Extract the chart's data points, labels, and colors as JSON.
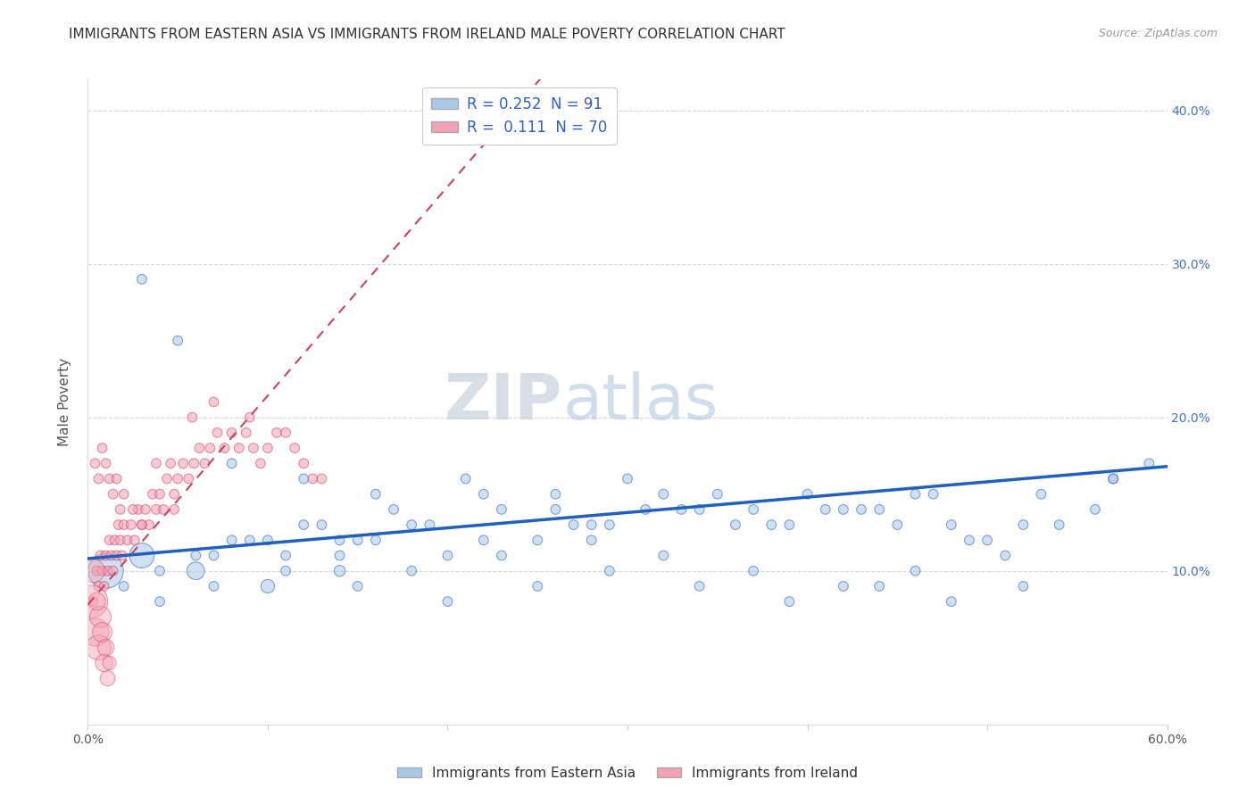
{
  "title": "IMMIGRANTS FROM EASTERN ASIA VS IMMIGRANTS FROM IRELAND MALE POVERTY CORRELATION CHART",
  "source": "Source: ZipAtlas.com",
  "ylabel": "Male Poverty",
  "xlim": [
    0.0,
    0.6
  ],
  "ylim": [
    0.0,
    0.42
  ],
  "legend_entry1": "R = 0.252  N = 91",
  "legend_entry2": "R =  0.111  N = 70",
  "legend_label1": "Immigrants from Eastern Asia",
  "legend_label2": "Immigrants from Ireland",
  "color_blue": "#a8c8e8",
  "color_pink": "#f4a0b5",
  "color_blue_line": "#2060c0",
  "color_pink_line": "#d04060",
  "background": "#ffffff",
  "ea_trend_x0": 0.0,
  "ea_trend_y0": 0.108,
  "ea_trend_x1": 0.6,
  "ea_trend_y1": 0.168,
  "ir_trend_x0": 0.0,
  "ir_trend_y0": 0.078,
  "ir_trend_x1": 0.13,
  "ir_trend_y1": 0.255,
  "eastern_asia_x": [
    0.17,
    0.22,
    0.26,
    0.32,
    0.37,
    0.4,
    0.43,
    0.48,
    0.53,
    0.57,
    0.12,
    0.15,
    0.19,
    0.23,
    0.28,
    0.33,
    0.38,
    0.42,
    0.46,
    0.5,
    0.08,
    0.11,
    0.14,
    0.18,
    0.22,
    0.27,
    0.31,
    0.36,
    0.41,
    0.45,
    0.49,
    0.54,
    0.06,
    0.09,
    0.13,
    0.16,
    0.2,
    0.25,
    0.29,
    0.34,
    0.39,
    0.44,
    0.47,
    0.52,
    0.56,
    0.04,
    0.07,
    0.1,
    0.14,
    0.18,
    0.23,
    0.28,
    0.32,
    0.37,
    0.42,
    0.46,
    0.51,
    0.03,
    0.05,
    0.08,
    0.12,
    0.16,
    0.21,
    0.26,
    0.3,
    0.35,
    0.02,
    0.04,
    0.07,
    0.11,
    0.15,
    0.2,
    0.25,
    0.29,
    0.34,
    0.39,
    0.44,
    0.48,
    0.52,
    0.57,
    0.59,
    0.01,
    0.03,
    0.06,
    0.1,
    0.14
  ],
  "eastern_asia_y": [
    0.14,
    0.15,
    0.14,
    0.15,
    0.14,
    0.15,
    0.14,
    0.13,
    0.15,
    0.16,
    0.13,
    0.12,
    0.13,
    0.14,
    0.13,
    0.14,
    0.13,
    0.14,
    0.15,
    0.12,
    0.12,
    0.11,
    0.12,
    0.13,
    0.12,
    0.13,
    0.14,
    0.13,
    0.14,
    0.13,
    0.12,
    0.13,
    0.11,
    0.12,
    0.13,
    0.12,
    0.11,
    0.12,
    0.13,
    0.14,
    0.13,
    0.14,
    0.15,
    0.13,
    0.14,
    0.1,
    0.11,
    0.12,
    0.11,
    0.1,
    0.11,
    0.12,
    0.11,
    0.1,
    0.09,
    0.1,
    0.11,
    0.29,
    0.25,
    0.17,
    0.16,
    0.15,
    0.16,
    0.15,
    0.16,
    0.15,
    0.09,
    0.08,
    0.09,
    0.1,
    0.09,
    0.08,
    0.09,
    0.1,
    0.09,
    0.08,
    0.09,
    0.08,
    0.09,
    0.16,
    0.17,
    0.1,
    0.11,
    0.1,
    0.09,
    0.1
  ],
  "eastern_asia_size": [
    60,
    60,
    60,
    60,
    60,
    60,
    60,
    60,
    60,
    60,
    60,
    60,
    60,
    60,
    60,
    60,
    60,
    60,
    60,
    60,
    60,
    60,
    60,
    60,
    60,
    60,
    60,
    60,
    60,
    60,
    60,
    60,
    60,
    60,
    60,
    60,
    60,
    60,
    60,
    60,
    60,
    60,
    60,
    60,
    60,
    60,
    60,
    60,
    60,
    60,
    60,
    60,
    60,
    60,
    60,
    60,
    60,
    60,
    60,
    60,
    60,
    60,
    60,
    60,
    60,
    60,
    60,
    60,
    60,
    60,
    60,
    60,
    60,
    60,
    60,
    60,
    60,
    60,
    60,
    60,
    60,
    800,
    400,
    200,
    120,
    80
  ],
  "ireland_x": [
    0.003,
    0.005,
    0.006,
    0.007,
    0.008,
    0.009,
    0.01,
    0.011,
    0.012,
    0.013,
    0.014,
    0.015,
    0.016,
    0.017,
    0.018,
    0.019,
    0.02,
    0.022,
    0.024,
    0.026,
    0.028,
    0.03,
    0.032,
    0.034,
    0.036,
    0.038,
    0.04,
    0.042,
    0.044,
    0.046,
    0.048,
    0.05,
    0.053,
    0.056,
    0.059,
    0.062,
    0.065,
    0.068,
    0.072,
    0.076,
    0.08,
    0.084,
    0.088,
    0.092,
    0.096,
    0.1,
    0.105,
    0.11,
    0.115,
    0.12,
    0.125,
    0.13,
    0.004,
    0.006,
    0.008,
    0.01,
    0.012,
    0.014,
    0.016,
    0.018,
    0.02,
    0.025,
    0.03,
    0.038,
    0.048,
    0.058,
    0.07,
    0.09
  ],
  "ireland_y": [
    0.08,
    0.1,
    0.09,
    0.11,
    0.1,
    0.09,
    0.11,
    0.1,
    0.12,
    0.11,
    0.1,
    0.12,
    0.11,
    0.13,
    0.12,
    0.11,
    0.13,
    0.12,
    0.13,
    0.12,
    0.14,
    0.13,
    0.14,
    0.13,
    0.15,
    0.14,
    0.15,
    0.14,
    0.16,
    0.17,
    0.15,
    0.16,
    0.17,
    0.16,
    0.17,
    0.18,
    0.17,
    0.18,
    0.19,
    0.18,
    0.19,
    0.18,
    0.19,
    0.18,
    0.17,
    0.18,
    0.19,
    0.19,
    0.18,
    0.17,
    0.16,
    0.16,
    0.17,
    0.16,
    0.18,
    0.17,
    0.16,
    0.15,
    0.16,
    0.14,
    0.15,
    0.14,
    0.13,
    0.17,
    0.14,
    0.2,
    0.21,
    0.2
  ],
  "ireland_size": [
    60,
    60,
    60,
    60,
    60,
    60,
    60,
    60,
    60,
    60,
    60,
    60,
    60,
    60,
    60,
    60,
    60,
    60,
    60,
    60,
    60,
    60,
    60,
    60,
    60,
    60,
    60,
    60,
    60,
    60,
    60,
    60,
    60,
    60,
    60,
    60,
    60,
    60,
    60,
    60,
    60,
    60,
    60,
    60,
    60,
    60,
    60,
    60,
    60,
    60,
    60,
    60,
    60,
    60,
    60,
    60,
    60,
    60,
    60,
    60,
    60,
    60,
    60,
    60,
    60,
    60,
    60,
    60
  ],
  "ireland_large_x": [
    0.002,
    0.004,
    0.006,
    0.007,
    0.008,
    0.009,
    0.01,
    0.011,
    0.012,
    0.003,
    0.005
  ],
  "ireland_large_y": [
    0.08,
    0.06,
    0.05,
    0.07,
    0.06,
    0.04,
    0.05,
    0.03,
    0.04,
    0.1,
    0.08
  ],
  "ireland_large_size": [
    700,
    500,
    400,
    300,
    250,
    200,
    180,
    150,
    120,
    350,
    200
  ]
}
